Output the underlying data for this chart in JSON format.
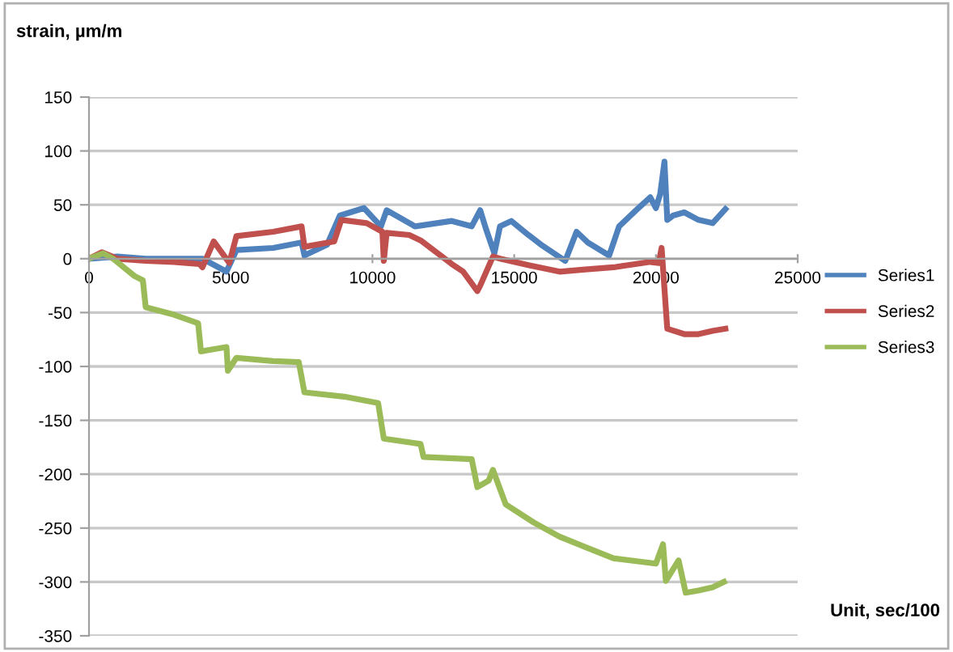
{
  "chart_data": {
    "type": "line",
    "xlabel": "Unit, sec/100",
    "ylabel": "strain, µm/m",
    "xlim": [
      0,
      25000
    ],
    "xticks": [
      0,
      5000,
      10000,
      15000,
      20000,
      25000
    ],
    "ylim": [
      -350,
      150
    ],
    "yticks": [
      -350,
      -300,
      -250,
      -200,
      -150,
      -100,
      -50,
      0,
      50,
      100,
      150
    ],
    "grid": "y",
    "legend": "right",
    "marker": "none",
    "line_style": "solid",
    "series": [
      {
        "name": "Series1",
        "color": "#4f81bd",
        "x": [
          0,
          1000,
          2000,
          3000,
          4000,
          4850,
          5200,
          6500,
          7500,
          7600,
          8400,
          8850,
          9700,
          10300,
          10500,
          11500,
          12800,
          13500,
          13800,
          14000,
          14300,
          14500,
          14900,
          15500,
          16000,
          16800,
          17200,
          17600,
          18350,
          18700,
          19300,
          19800,
          20000,
          20150,
          20300,
          20400,
          20600,
          21000,
          21500,
          22000,
          22450
        ],
        "values": [
          0,
          2,
          0,
          0,
          0,
          -12,
          8,
          10,
          15,
          3,
          13,
          40,
          47,
          30,
          45,
          30,
          35,
          30,
          45,
          28,
          5,
          30,
          35,
          22,
          12,
          -2,
          25,
          15,
          3,
          30,
          45,
          57,
          47,
          60,
          90,
          36,
          40,
          43,
          36,
          33,
          46
        ]
      },
      {
        "name": "Series2",
        "color": "#c0504d",
        "x": [
          0,
          460,
          1000,
          2000,
          3000,
          3900,
          4000,
          4400,
          4950,
          5200,
          6500,
          7500,
          7600,
          8650,
          8900,
          9800,
          10350,
          10400,
          10500,
          11300,
          11700,
          12800,
          13200,
          13700,
          13800,
          14250,
          14500,
          15500,
          16600,
          17500,
          18500,
          19800,
          20100,
          20200,
          20400,
          21000,
          21500,
          22000,
          22450
        ],
        "values": [
          0,
          6,
          0,
          -2,
          -3,
          -5,
          -8,
          16,
          -4,
          21,
          25,
          30,
          11,
          16,
          36,
          33,
          25,
          -2,
          24,
          22,
          17,
          -5,
          -12,
          -30,
          -25,
          2,
          0,
          -6,
          -12,
          -10,
          -8,
          -3,
          -4,
          10,
          -65,
          -70,
          -70,
          -67,
          -65
        ]
      },
      {
        "name": "Series3",
        "color": "#9bbb59",
        "x": [
          0,
          500,
          850,
          1600,
          1900,
          2000,
          3000,
          3850,
          3950,
          4850,
          4900,
          5200,
          6500,
          7400,
          7600,
          9000,
          10200,
          10400,
          11700,
          11800,
          13500,
          13700,
          14100,
          14250,
          14700,
          15700,
          16600,
          17550,
          18500,
          20000,
          20250,
          20350,
          20800,
          21050,
          21500,
          22000,
          22400
        ],
        "values": [
          0,
          5,
          0,
          -16,
          -20,
          -45,
          -52,
          -60,
          -86,
          -82,
          -104,
          -92,
          -95,
          -96,
          -124,
          -128,
          -134,
          -167,
          -172,
          -184,
          -186,
          -212,
          -206,
          -196,
          -228,
          -245,
          -258,
          -268,
          -278,
          -283,
          -265,
          -299,
          -280,
          -310,
          -308,
          -305,
          -300
        ]
      }
    ]
  }
}
